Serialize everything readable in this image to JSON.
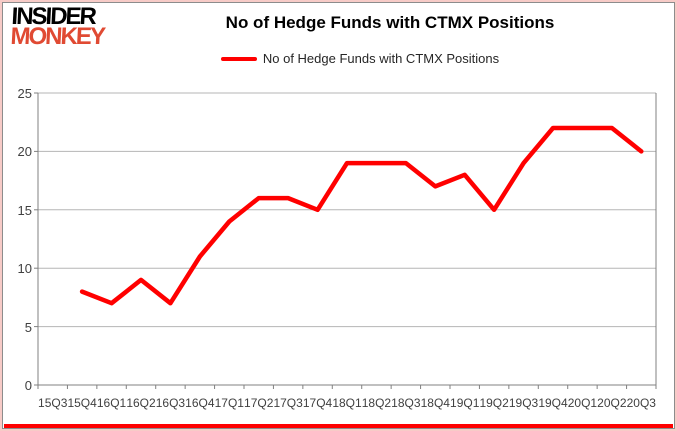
{
  "logo": {
    "line1": "INSIDER",
    "line2": "MONKEY"
  },
  "header": {
    "title": "No of Hedge Funds with CTMX Positions"
  },
  "legend": {
    "label": "No of Hedge Funds with CTMX Positions"
  },
  "colors": {
    "series_red": "#ff0000",
    "logo_red": "#e04a33",
    "gridline": "#b5b5b5",
    "axis": "#808080",
    "bottom_rule": "#fe0000"
  },
  "chart_data": {
    "type": "line",
    "title": "No of Hedge Funds with CTMX Positions",
    "categories": [
      "15Q3",
      "15Q4",
      "16Q1",
      "16Q2",
      "16Q3",
      "16Q4",
      "17Q1",
      "17Q2",
      "17Q3",
      "17Q4",
      "18Q1",
      "18Q2",
      "18Q3",
      "18Q4",
      "19Q1",
      "19Q2",
      "19Q3",
      "19Q4",
      "20Q1",
      "20Q2",
      "20Q3"
    ],
    "series": [
      {
        "name": "No of Hedge Funds with CTMX Positions",
        "color": "#ff0000",
        "values": [
          null,
          8,
          7,
          9,
          7,
          11,
          14,
          16,
          16,
          15,
          19,
          19,
          19,
          17,
          18,
          15,
          19,
          22,
          22,
          22,
          20
        ]
      }
    ],
    "xlabel": "",
    "ylabel": "",
    "ylim": [
      0,
      25
    ],
    "yticks": [
      0,
      5,
      10,
      15,
      20,
      25
    ],
    "grid": true,
    "legend_position": "top"
  }
}
